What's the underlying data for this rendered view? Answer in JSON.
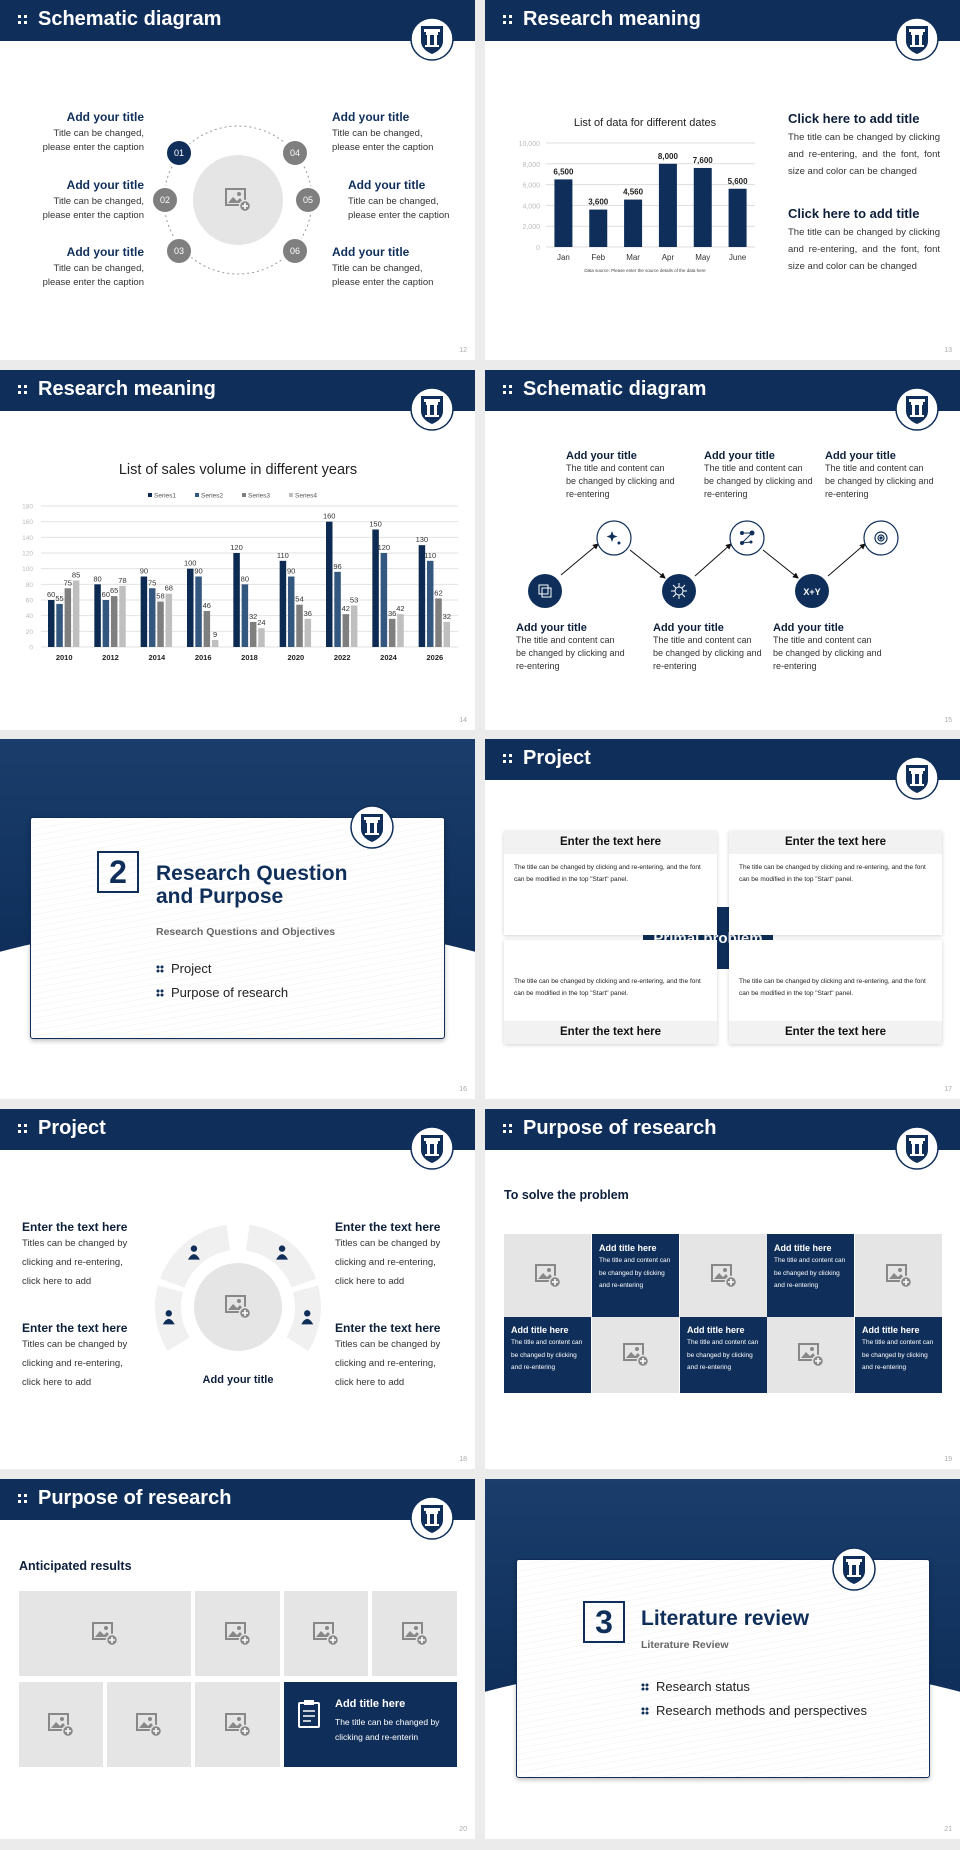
{
  "colors": {
    "navy": "#0f2f5a",
    "node_gray": "#7f7f7f",
    "placeholder": "#e6e5e6",
    "series": [
      "#0d2a52",
      "#34577f",
      "#7f7f7f",
      "#bfbfbf"
    ]
  },
  "s12": {
    "title": "Schematic diagram",
    "page": "12",
    "nodes": [
      "01",
      "02",
      "03",
      "04",
      "05",
      "06"
    ],
    "left": [
      {
        "title": "Add your title",
        "caption": "Title can be changed,\nplease enter the caption"
      },
      {
        "title": "Add your title",
        "caption": "Title can be changed,\nplease enter the caption"
      },
      {
        "title": "Add your title",
        "caption": "Title can be changed,\nplease enter the caption"
      }
    ],
    "right": [
      {
        "title": "Add your title",
        "caption": "Title can be changed,\nplease enter the caption"
      },
      {
        "title": "Add your title",
        "caption": "Title can be changed,\nplease enter the caption"
      },
      {
        "title": "Add your title",
        "caption": "Title can be changed,\nplease enter the caption"
      }
    ]
  },
  "s13": {
    "title": "Research meaning",
    "page": "13",
    "blocks": [
      {
        "title": "Click here to add title",
        "text": "The title can be changed by clicking and re-entering, and the font, font size and color can be changed"
      },
      {
        "title": "Click here to add title",
        "text": "The title can be changed by clicking and re-entering, and the font, font size and color can be changed"
      }
    ]
  },
  "s14": {
    "title": "Research meaning",
    "page": "14"
  },
  "s15": {
    "title": "Schematic diagram",
    "page": "15",
    "steps": [
      {
        "title": "Add your title",
        "text": "The title and content can be changed by clicking and re-entering",
        "icon": "network-cube-icon"
      },
      {
        "title": "Add your title",
        "text": "The title and content can be changed by clicking and re-entering",
        "icon": "sparkles-icon"
      },
      {
        "title": "Add your title",
        "text": "The title and content can be changed by clicking and re-entering",
        "icon": "virus-icon"
      },
      {
        "title": "Add your title",
        "text": "The title and content can be changed by clicking and re-entering",
        "icon": "molecule-icon"
      },
      {
        "title": "Add your title",
        "text": "The title and content can be changed by clicking and re-entering",
        "icon": "formula-icon"
      },
      {
        "title": "Add your title",
        "text": "The title and content can be changed by clicking and re-entering",
        "icon": "target-icon"
      }
    ],
    "formula": "X+Y"
  },
  "s16": {
    "number": "2",
    "title_1": "Research Question",
    "title_2": "and Purpose",
    "subtitle": "Research Questions and Objectives",
    "bullets": [
      "Project",
      "Purpose of research"
    ],
    "page": "16"
  },
  "s17": {
    "title": "Project",
    "page": "17",
    "center": "Primal problem",
    "boxes": [
      {
        "heading": "Enter the text here",
        "text": "The title can be changed by clicking and re-entering, and the font can be modified in the top \"Start\" panel."
      },
      {
        "heading": "Enter the text here",
        "text": "The title can be changed by clicking and re-entering, and the font can be modified in the top \"Start\" panel."
      },
      {
        "heading": "Enter the text here",
        "text": "The title can be changed by clicking and re-entering, and the font can be modified in the top \"Start\" panel."
      },
      {
        "heading": "Enter the text here",
        "text": "The title can be changed by clicking and re-entering, and the font can be modified in the top \"Start\" panel."
      }
    ]
  },
  "s18": {
    "title": "Project",
    "page": "18",
    "center_label": "Add your title",
    "items": [
      {
        "title": "Enter the text here",
        "text": "Titles can be changed by\nclicking and re-entering,\nclick here to add"
      },
      {
        "title": "Enter the text here",
        "text": "Titles can be changed by\nclicking and re-entering,\nclick here to add"
      },
      {
        "title": "Enter the text here",
        "text": "Titles can be changed by\nclicking and re-entering,\nclick here to add"
      },
      {
        "title": "Enter the text here",
        "text": "Titles can be changed by\nclicking and re-entering,\nclick here to add"
      }
    ]
  },
  "s19": {
    "title": "Purpose of research",
    "page": "19",
    "subtitle": "To solve the problem",
    "tiles": [
      {
        "title": "Add title here",
        "text": "The title and content can be changed by clicking and re-entering"
      },
      {
        "title": "Add title here",
        "text": "The title and content can be changed by clicking and re-entering"
      },
      {
        "title": "Add title here",
        "text": "The title and content can be changed by clicking and re-entering"
      },
      {
        "title": "Add title here",
        "text": "The title and content can be changed by clicking and re-entering"
      },
      {
        "title": "Add title here",
        "text": "The title and content can be changed by clicking and re-entering"
      }
    ]
  },
  "s20": {
    "title": "Purpose of research",
    "page": "20",
    "subtitle": "Anticipated results",
    "tile": {
      "title": "Add title here",
      "text": "The title can be changed by clicking and re-enterin"
    }
  },
  "s21": {
    "number": "3",
    "title": "Literature review",
    "subtitle": "Literature Review",
    "bullets": [
      "Research status",
      "Research methods and perspectives"
    ],
    "page": "21"
  },
  "chart_data": [
    {
      "type": "bar",
      "title": "List of data for different dates",
      "categories": [
        "Jan",
        "Feb",
        "Mar",
        "Apr",
        "May",
        "June"
      ],
      "values": [
        6500,
        3600,
        4560,
        8000,
        7600,
        5600
      ],
      "data_labels": [
        "6,500",
        "3,600",
        "4,560",
        "8,000",
        "7,600",
        "5,600"
      ],
      "yticks": [
        "0",
        "2,000",
        "4,000",
        "6,000",
        "8,000",
        "10,000"
      ],
      "ylim": [
        0,
        10000
      ],
      "grid": true,
      "note": "Data source: Please enter the source details of the data here"
    },
    {
      "type": "bar",
      "title": "List of sales volume in different years",
      "categories": [
        "2010",
        "2012",
        "2014",
        "2016",
        "2018",
        "2020",
        "2022",
        "2024",
        "2026"
      ],
      "series": [
        {
          "name": "Series1",
          "values": [
            60,
            80,
            90,
            100,
            120,
            110,
            160,
            150,
            130
          ]
        },
        {
          "name": "Series2",
          "values": [
            55,
            60,
            75,
            90,
            80,
            90,
            96,
            120,
            110
          ]
        },
        {
          "name": "Series3",
          "values": [
            75,
            65,
            58,
            46,
            32,
            54,
            42,
            36,
            62
          ]
        },
        {
          "name": "Series4",
          "values": [
            85,
            78,
            68,
            9,
            24,
            36,
            53,
            42,
            32
          ]
        }
      ],
      "yticks": [
        "0",
        "20",
        "40",
        "60",
        "80",
        "100",
        "120",
        "140",
        "160",
        "180"
      ],
      "ylim": [
        0,
        180
      ],
      "grid": true,
      "legend": "top"
    }
  ]
}
